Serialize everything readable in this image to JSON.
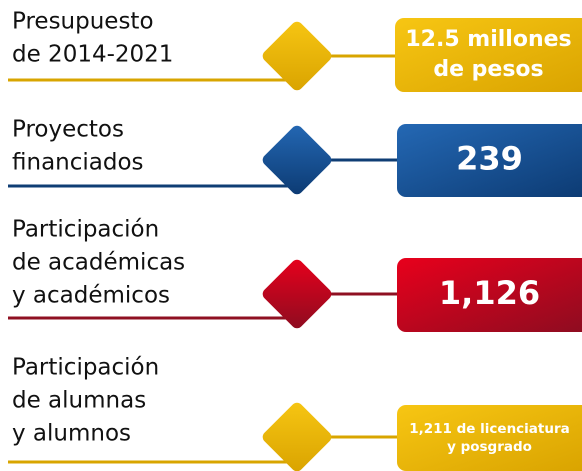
{
  "items": [
    {
      "label": [
        "Presupuesto",
        "de 2014-2021"
      ],
      "value": [
        "12.5 millones",
        "de pesos"
      ]
    },
    {
      "label": [
        "Proyectos",
        "financiados"
      ],
      "value": [
        "239"
      ]
    },
    {
      "label": [
        "Participación",
        "de académicas",
        "y académicos"
      ],
      "value": [
        "1,126"
      ]
    },
    {
      "label": [
        "Participación",
        "de alumnas",
        "y alumnos"
      ],
      "value": [
        "1,211 de licenciatura",
        "y posgrado"
      ]
    }
  ]
}
